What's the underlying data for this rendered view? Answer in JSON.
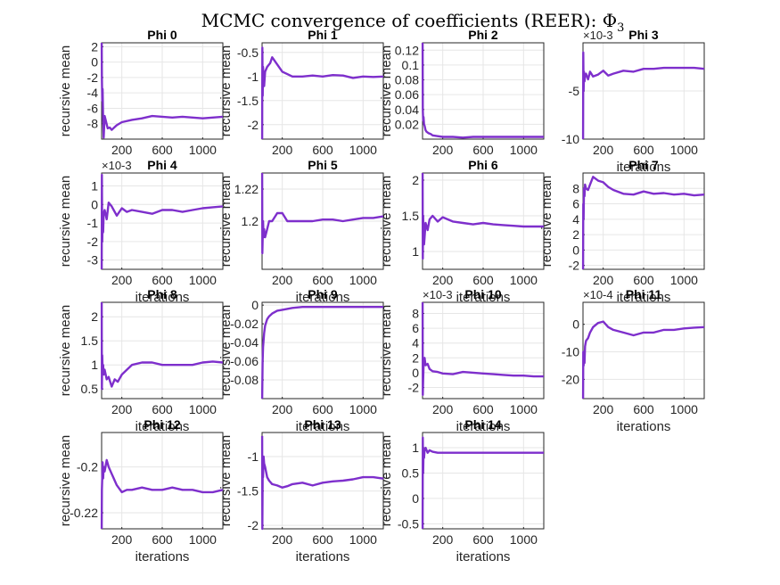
{
  "figure_title": "MCMC convergence of coefficients (REER): Φ",
  "colors": {
    "line": "#7e2fcc",
    "grid": "#e6e6e6",
    "axis": "#262626"
  },
  "chart_data": [
    {
      "type": "line",
      "title": "Phi 0",
      "xlabel": "",
      "ylabel": "recursive mean",
      "xlim": [
        0,
        1200
      ],
      "ylim": [
        -10,
        2.5
      ],
      "xticks": [
        200,
        600,
        1000
      ],
      "xticklabels": [
        "200",
        "600",
        "1000"
      ],
      "yticks": [
        2,
        0,
        -2,
        -4,
        -6,
        -8
      ],
      "yticklabels": [
        "2",
        "0",
        "-2",
        "-4",
        "-6",
        "-8"
      ],
      "multiplier": "",
      "x": [
        1,
        3,
        6,
        10,
        15,
        20,
        30,
        40,
        60,
        80,
        100,
        150,
        200,
        300,
        400,
        500,
        600,
        700,
        800,
        900,
        1000,
        1100,
        1200
      ],
      "y": [
        2.5,
        -2,
        -5,
        -3.5,
        -7.5,
        -9.8,
        -7,
        -7.5,
        -8.6,
        -8.5,
        -8.8,
        -8.2,
        -7.8,
        -7.5,
        -7.3,
        -7,
        -7.1,
        -7.2,
        -7.1,
        -7.2,
        -7.3,
        -7.2,
        -7.1
      ]
    },
    {
      "type": "line",
      "title": "Phi 1",
      "xlabel": "",
      "ylabel": "recursive mean",
      "xlim": [
        0,
        1200
      ],
      "ylim": [
        -2.3,
        -0.3
      ],
      "xticks": [
        200,
        600,
        1000
      ],
      "xticklabels": [
        "200",
        "600",
        "1000"
      ],
      "yticks": [
        -0.5,
        -1,
        -1.5,
        -2
      ],
      "yticklabels": [
        "-0.5",
        "-1",
        "-1.5",
        "-2"
      ],
      "multiplier": "",
      "x": [
        1,
        3,
        6,
        10,
        15,
        20,
        30,
        50,
        80,
        100,
        150,
        200,
        250,
        300,
        400,
        500,
        600,
        700,
        800,
        900,
        1000,
        1100,
        1200
      ],
      "y": [
        -2.3,
        -0.4,
        -1.4,
        -0.8,
        -1.1,
        -1.2,
        -0.9,
        -0.8,
        -0.72,
        -0.6,
        -0.75,
        -0.9,
        -0.95,
        -1.0,
        -1.0,
        -0.98,
        -1.0,
        -0.97,
        -0.98,
        -1.03,
        -1.0,
        -1.01,
        -1.0
      ]
    },
    {
      "type": "line",
      "title": "Phi 2",
      "xlabel": "",
      "ylabel": "recursive mean",
      "xlim": [
        0,
        1200
      ],
      "ylim": [
        0,
        0.13
      ],
      "xticks": [
        200,
        600,
        1000
      ],
      "xticklabels": [
        "200",
        "600",
        "1000"
      ],
      "yticks": [
        0.12,
        0.1,
        0.08,
        0.06,
        0.04,
        0.02
      ],
      "yticklabels": [
        "0.12",
        "0.1",
        "0.08",
        "0.06",
        "0.04",
        "0.02"
      ],
      "multiplier": "",
      "x": [
        1,
        3,
        6,
        10,
        15,
        20,
        30,
        40,
        60,
        80,
        100,
        150,
        200,
        300,
        400,
        500,
        600,
        700,
        800,
        900,
        1000,
        1100,
        1200
      ],
      "y": [
        0.13,
        0.04,
        0.025,
        0.03,
        0.02,
        0.018,
        0.012,
        0.01,
        0.008,
        0.007,
        0.005,
        0.004,
        0.003,
        0.003,
        0.002,
        0.003,
        0.003,
        0.003,
        0.003,
        0.003,
        0.003,
        0.003,
        0.003
      ]
    },
    {
      "type": "line",
      "title": "Phi 3",
      "xlabel": "iterations",
      "ylabel": "",
      "xlim": [
        0,
        1200
      ],
      "ylim": [
        -10,
        0
      ],
      "xticks": [
        200,
        600,
        1000
      ],
      "xticklabels": [
        "200",
        "600",
        "1000"
      ],
      "yticks": [
        -5,
        -10
      ],
      "yticklabels": [
        "-5",
        "-10"
      ],
      "multiplier": "×10^-3",
      "x": [
        1,
        3,
        6,
        10,
        15,
        20,
        30,
        50,
        70,
        100,
        150,
        200,
        250,
        300,
        400,
        500,
        600,
        700,
        800,
        900,
        1000,
        1100,
        1200
      ],
      "y": [
        -10,
        -1,
        -5,
        -3,
        -4,
        -3.5,
        -3.2,
        -3.8,
        -3,
        -3.5,
        -3.3,
        -2.9,
        -3.4,
        -3.2,
        -2.9,
        -3,
        -2.7,
        -2.7,
        -2.6,
        -2.6,
        -2.6,
        -2.6,
        -2.7
      ]
    },
    {
      "type": "line",
      "title": "Phi 4",
      "xlabel": "iterations",
      "ylabel": "recursive mean",
      "xlim": [
        0,
        1200
      ],
      "ylim": [
        -3.5,
        1.7
      ],
      "xticks": [
        200,
        600,
        1000
      ],
      "xticklabels": [
        "200",
        "600",
        "1000"
      ],
      "yticks": [
        1,
        0,
        -1,
        -2,
        -3
      ],
      "yticklabels": [
        "1",
        "0",
        "-1",
        "-2",
        "-3"
      ],
      "multiplier": "×10^-3",
      "x": [
        1,
        3,
        6,
        10,
        15,
        20,
        30,
        50,
        70,
        100,
        150,
        200,
        250,
        300,
        400,
        500,
        600,
        700,
        800,
        900,
        1000,
        1100,
        1200
      ],
      "y": [
        -3.5,
        1.6,
        -2,
        -1,
        -1.5,
        -0.5,
        -0.3,
        -0.8,
        0.1,
        -0.1,
        -0.6,
        -0.2,
        -0.4,
        -0.3,
        -0.4,
        -0.5,
        -0.3,
        -0.3,
        -0.4,
        -0.3,
        -0.2,
        -0.15,
        -0.1
      ]
    },
    {
      "type": "line",
      "title": "Phi 5",
      "xlabel": "iterations",
      "ylabel": "recursive mean",
      "xlim": [
        0,
        1200
      ],
      "ylim": [
        1.17,
        1.23
      ],
      "xticks": [
        200,
        600,
        1000
      ],
      "xticklabels": [
        "200",
        "600",
        "1000"
      ],
      "yticks": [
        1.22,
        1.2
      ],
      "yticklabels": [
        "1.22",
        "1.2"
      ],
      "multiplier": "",
      "x": [
        1,
        3,
        6,
        10,
        15,
        20,
        30,
        50,
        70,
        100,
        150,
        200,
        250,
        300,
        400,
        500,
        600,
        700,
        800,
        900,
        1000,
        1100,
        1200
      ],
      "y": [
        1.23,
        1.18,
        1.19,
        1.2,
        1.19,
        1.195,
        1.19,
        1.195,
        1.2,
        1.2,
        1.205,
        1.205,
        1.2,
        1.2,
        1.2,
        1.2,
        1.201,
        1.201,
        1.2,
        1.201,
        1.202,
        1.202,
        1.203
      ]
    },
    {
      "type": "line",
      "title": "Phi 6",
      "xlabel": "iterations",
      "ylabel": "recursive mean",
      "xlim": [
        0,
        1200
      ],
      "ylim": [
        0.75,
        2.1
      ],
      "xticks": [
        200,
        600,
        1000
      ],
      "xticklabels": [
        "200",
        "600",
        "1000"
      ],
      "yticks": [
        2,
        1.5,
        1
      ],
      "yticklabels": [
        "2",
        "1.5",
        "1"
      ],
      "multiplier": "",
      "x": [
        1,
        3,
        6,
        10,
        15,
        20,
        30,
        50,
        70,
        100,
        150,
        200,
        250,
        300,
        400,
        500,
        600,
        700,
        800,
        900,
        1000,
        1100,
        1200
      ],
      "y": [
        2.1,
        0.9,
        1.5,
        1.3,
        1.1,
        1.2,
        1.4,
        1.3,
        1.45,
        1.5,
        1.42,
        1.48,
        1.45,
        1.42,
        1.4,
        1.38,
        1.4,
        1.38,
        1.37,
        1.36,
        1.35,
        1.35,
        1.35
      ]
    },
    {
      "type": "line",
      "title": "Phi 7",
      "xlabel": "iterations",
      "ylabel": "recursive mean",
      "xlim": [
        0,
        1200
      ],
      "ylim": [
        -2.5,
        10
      ],
      "xticks": [
        200,
        600,
        1000
      ],
      "xticklabels": [
        "200",
        "600",
        "1000"
      ],
      "yticks": [
        8,
        6,
        4,
        2,
        0,
        -2
      ],
      "yticklabels": [
        "8",
        "6",
        "4",
        "2",
        "0",
        "-2"
      ],
      "multiplier": "",
      "x": [
        1,
        3,
        6,
        10,
        15,
        20,
        30,
        50,
        70,
        100,
        150,
        200,
        250,
        300,
        400,
        500,
        600,
        700,
        800,
        900,
        1000,
        1100,
        1200
      ],
      "y": [
        -2.5,
        6,
        4,
        8,
        7,
        8.5,
        8,
        7.8,
        8.5,
        9.5,
        9,
        8.8,
        8.2,
        7.8,
        7.3,
        7.2,
        7.6,
        7.3,
        7.4,
        7.2,
        7.3,
        7.1,
        7.2
      ]
    },
    {
      "type": "line",
      "title": "Phi 8",
      "xlabel": "iterations",
      "ylabel": "recursive mean",
      "xlim": [
        0,
        1200
      ],
      "ylim": [
        0.3,
        2.3
      ],
      "xticks": [
        200,
        600,
        1000
      ],
      "xticklabels": [
        "200",
        "600",
        "1000"
      ],
      "yticks": [
        2,
        1.5,
        1,
        0.5
      ],
      "yticklabels": [
        "2",
        "1.5",
        "1",
        "0.5"
      ],
      "multiplier": "",
      "x": [
        1,
        3,
        6,
        10,
        15,
        20,
        30,
        50,
        70,
        100,
        130,
        160,
        200,
        250,
        300,
        400,
        500,
        600,
        700,
        800,
        900,
        1000,
        1100,
        1200
      ],
      "y": [
        2.3,
        0.5,
        1.2,
        0.9,
        1.0,
        0.8,
        0.9,
        0.7,
        0.75,
        0.55,
        0.7,
        0.65,
        0.8,
        0.9,
        1.0,
        1.05,
        1.05,
        1.0,
        1.0,
        1.0,
        1.0,
        1.05,
        1.07,
        1.05
      ]
    },
    {
      "type": "line",
      "title": "Phi 9",
      "xlabel": "iterations",
      "ylabel": "recursive mean",
      "xlim": [
        0,
        1200
      ],
      "ylim": [
        -0.1,
        0.003
      ],
      "xticks": [
        200,
        600,
        1000
      ],
      "xticklabels": [
        "200",
        "600",
        "1000"
      ],
      "yticks": [
        0,
        -0.02,
        -0.04,
        -0.06,
        -0.08
      ],
      "yticklabels": [
        "0",
        "-0.02",
        "-0.04",
        "-0.06",
        "-0.08"
      ],
      "multiplier": "",
      "x": [
        1,
        5,
        10,
        20,
        30,
        50,
        70,
        100,
        150,
        200,
        300,
        400,
        500,
        600,
        700,
        800,
        900,
        1000,
        1100,
        1200
      ],
      "y": [
        -0.1,
        -0.06,
        -0.045,
        -0.03,
        -0.022,
        -0.015,
        -0.012,
        -0.009,
        -0.006,
        -0.005,
        -0.003,
        -0.002,
        -0.002,
        -0.002,
        -0.002,
        -0.002,
        -0.002,
        -0.002,
        -0.002,
        -0.002
      ]
    },
    {
      "type": "line",
      "title": "Phi 10",
      "xlabel": "iterations",
      "ylabel": "recursive mean",
      "xlim": [
        0,
        1200
      ],
      "ylim": [
        -3.5,
        9.5
      ],
      "xticks": [
        200,
        600,
        1000
      ],
      "xticklabels": [
        "200",
        "600",
        "1000"
      ],
      "yticks": [
        8,
        6,
        4,
        2,
        0,
        -2
      ],
      "yticklabels": [
        "8",
        "6",
        "4",
        "2",
        "0",
        "-2"
      ],
      "multiplier": "×10^-3",
      "x": [
        1,
        3,
        6,
        10,
        15,
        20,
        30,
        50,
        70,
        100,
        150,
        200,
        300,
        400,
        500,
        600,
        700,
        800,
        900,
        1000,
        1100,
        1200
      ],
      "y": [
        9.5,
        -3,
        -1,
        0.8,
        1.5,
        2,
        1,
        1.2,
        0.5,
        0.2,
        0.1,
        -0.1,
        -0.2,
        0.1,
        0,
        -0.1,
        -0.2,
        -0.3,
        -0.4,
        -0.4,
        -0.5,
        -0.5
      ]
    },
    {
      "type": "line",
      "title": "Phi 11",
      "xlabel": "iterations",
      "ylabel": "",
      "xlim": [
        0,
        1200
      ],
      "ylim": [
        -27,
        8
      ],
      "xticks": [
        200,
        600,
        1000
      ],
      "xticklabels": [
        "200",
        "600",
        "1000"
      ],
      "yticks": [
        0,
        -10,
        -20
      ],
      "yticklabels": [
        "0",
        "-10",
        "-20"
      ],
      "multiplier": "×10^-4",
      "x": [
        1,
        3,
        6,
        10,
        15,
        20,
        30,
        50,
        70,
        100,
        150,
        200,
        250,
        300,
        400,
        500,
        600,
        700,
        800,
        900,
        1000,
        1100,
        1200
      ],
      "y": [
        -27,
        -10,
        -15,
        -12,
        -14,
        -8,
        -6,
        -5,
        -3,
        -1,
        0.5,
        1,
        -1,
        -2,
        -3,
        -4,
        -3,
        -3,
        -2,
        -2,
        -1.5,
        -1.2,
        -1
      ]
    },
    {
      "type": "line",
      "title": "Phi 12",
      "xlabel": "iterations",
      "ylabel": "recursive mean",
      "xlim": [
        0,
        1200
      ],
      "ylim": [
        -0.227,
        -0.185
      ],
      "xticks": [
        200,
        600,
        1000
      ],
      "xticklabels": [
        "200",
        "600",
        "1000"
      ],
      "yticks": [
        -0.2,
        -0.22
      ],
      "yticklabels": [
        "-0.2",
        "-0.22"
      ],
      "multiplier": "",
      "x": [
        1,
        3,
        6,
        10,
        15,
        20,
        30,
        50,
        70,
        100,
        150,
        200,
        250,
        300,
        400,
        500,
        600,
        700,
        800,
        900,
        1000,
        1100,
        1200
      ],
      "y": [
        -0.227,
        -0.21,
        -0.205,
        -0.198,
        -0.205,
        -0.2,
        -0.202,
        -0.197,
        -0.2,
        -0.203,
        -0.208,
        -0.211,
        -0.21,
        -0.21,
        -0.209,
        -0.21,
        -0.21,
        -0.209,
        -0.21,
        -0.21,
        -0.211,
        -0.211,
        -0.21
      ]
    },
    {
      "type": "line",
      "title": "Phi 13",
      "xlabel": "iterations",
      "ylabel": "recursive mean",
      "xlim": [
        0,
        1200
      ],
      "ylim": [
        -2.05,
        -0.65
      ],
      "xticks": [
        200,
        600,
        1000
      ],
      "xticklabels": [
        "200",
        "600",
        "1000"
      ],
      "yticks": [
        -1,
        -1.5,
        -2
      ],
      "yticklabels": [
        "-1",
        "-1.5",
        "-2"
      ],
      "multiplier": "",
      "x": [
        1,
        3,
        6,
        10,
        15,
        20,
        30,
        50,
        70,
        100,
        150,
        200,
        250,
        300,
        400,
        500,
        600,
        700,
        800,
        900,
        1000,
        1100,
        1200
      ],
      "y": [
        -0.7,
        -2.05,
        -1.2,
        -1.3,
        -1.0,
        -1.1,
        -1.15,
        -1.3,
        -1.35,
        -1.4,
        -1.42,
        -1.45,
        -1.43,
        -1.4,
        -1.38,
        -1.42,
        -1.38,
        -1.36,
        -1.35,
        -1.33,
        -1.3,
        -1.3,
        -1.32
      ]
    },
    {
      "type": "line",
      "title": "Phi 14",
      "xlabel": "iterations",
      "ylabel": "recursive mean",
      "xlim": [
        0,
        1200
      ],
      "ylim": [
        -0.6,
        1.3
      ],
      "xticks": [
        200,
        600,
        1000
      ],
      "xticklabels": [
        "200",
        "600",
        "1000"
      ],
      "yticks": [
        1,
        0.5,
        0,
        -0.5
      ],
      "yticklabels": [
        "1",
        "0.5",
        "0",
        "-0.5"
      ],
      "multiplier": "",
      "x": [
        1,
        3,
        6,
        10,
        15,
        20,
        30,
        50,
        70,
        100,
        150,
        200,
        300,
        400,
        500,
        600,
        700,
        800,
        900,
        1000,
        1100,
        1200
      ],
      "y": [
        -0.6,
        1.2,
        0.5,
        0.9,
        0.8,
        0.95,
        1.0,
        0.9,
        0.95,
        0.92,
        0.9,
        0.9,
        0.9,
        0.9,
        0.9,
        0.9,
        0.9,
        0.9,
        0.9,
        0.9,
        0.9,
        0.9
      ]
    }
  ]
}
